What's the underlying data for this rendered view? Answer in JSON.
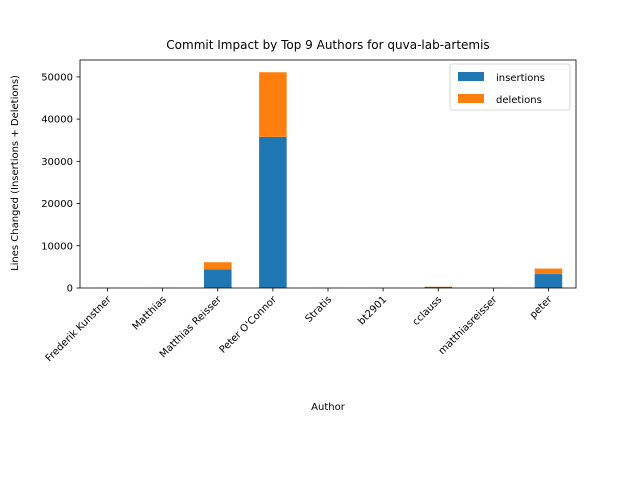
{
  "chart_data": {
    "type": "bar",
    "stacked": true,
    "title": "Commit Impact by Top 9 Authors for quva-lab-artemis",
    "xlabel": "Author",
    "ylabel": "Lines Changed (Insertions + Deletions)",
    "ylim": [
      0,
      54000
    ],
    "yticks": [
      0,
      10000,
      20000,
      30000,
      40000,
      50000
    ],
    "categories": [
      "Frederik Kunstner",
      "Matthias",
      "Matthias Reisser",
      "Peter O'Connor",
      "Stratis",
      "bt2901",
      "cclauss",
      "matthiasreisser",
      "peter"
    ],
    "series": [
      {
        "name": "insertions",
        "color": "#1f77b4",
        "values": [
          10,
          10,
          4400,
          35800,
          10,
          10,
          250,
          10,
          3300
        ]
      },
      {
        "name": "deletions",
        "color": "#ff7f0e",
        "values": [
          5,
          5,
          1700,
          15300,
          5,
          5,
          50,
          5,
          1300
        ]
      }
    ],
    "legend": "top-right",
    "grid": false
  }
}
